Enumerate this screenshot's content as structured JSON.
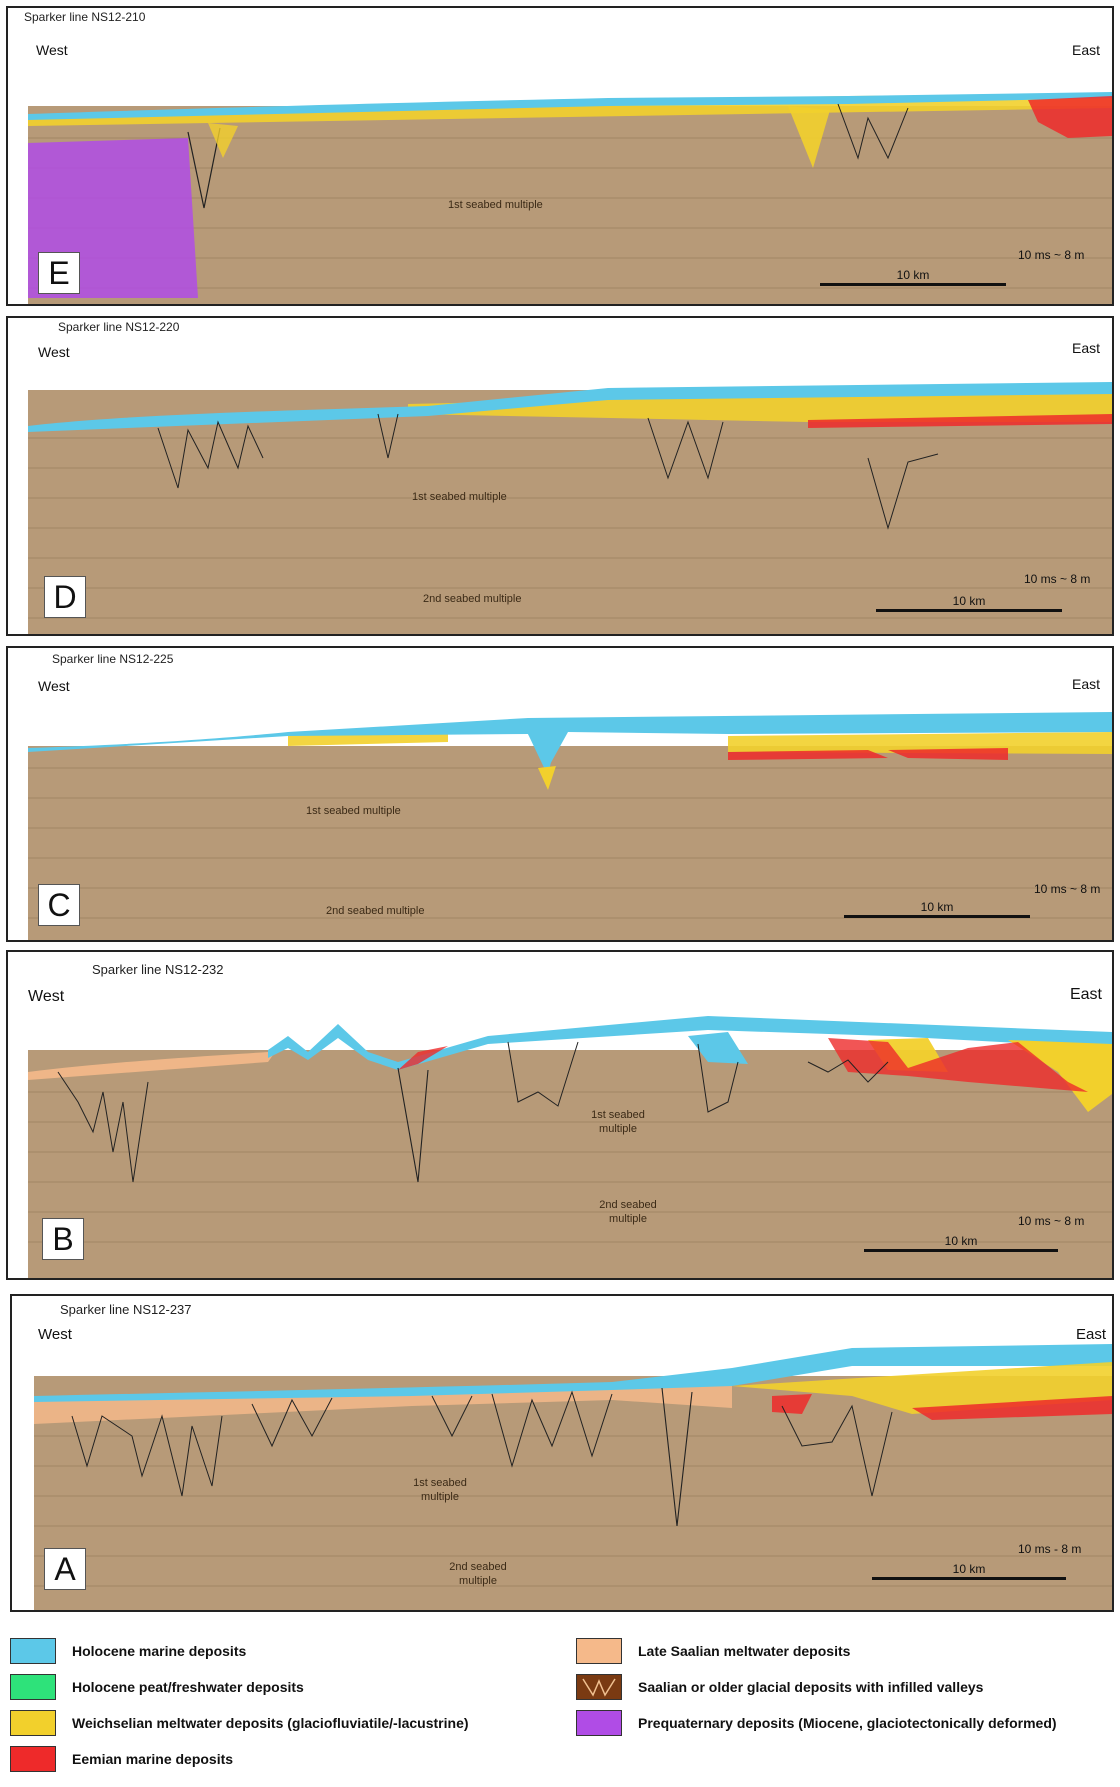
{
  "colors": {
    "holocene_marine": "#5cc8e8",
    "holocene_peat": "#2ee27a",
    "weichselian": "#f2d02c",
    "eemian": "#ee2a2a",
    "late_saalian": "#f5b98a",
    "saalian_glacial": "#7a3a12",
    "prequaternary": "#b04ce6",
    "background": "#b79a78"
  },
  "direction": {
    "west": "West",
    "east": "East"
  },
  "panels": [
    {
      "letter": "E",
      "title": "Sparker line NS12-210",
      "multiple1": "1st seabed multiple",
      "multiple2": "",
      "vscale": "10 ms ~ 8 m",
      "hscale": "10 km"
    },
    {
      "letter": "D",
      "title": "Sparker line NS12-220",
      "multiple1": "1st seabed multiple",
      "multiple2": "2nd seabed multiple",
      "vscale": "10 ms ~ 8 m",
      "hscale": "10 km"
    },
    {
      "letter": "C",
      "title": "Sparker line NS12-225",
      "multiple1": "1st seabed multiple",
      "multiple2": "2nd seabed multiple",
      "vscale": "10 ms ~ 8 m",
      "hscale": "10 km"
    },
    {
      "letter": "B",
      "title": "Sparker line NS12-232",
      "multiple1": "1st seabed multiple",
      "multiple2": "2nd seabed multiple",
      "vscale": "10 ms ~ 8 m",
      "hscale": "10 km"
    },
    {
      "letter": "A",
      "title": "Sparker line NS12-237",
      "multiple1": "1st seabed multiple",
      "multiple2": "2nd seabed multiple",
      "vscale": "10 ms - 8 m",
      "hscale": "10 km"
    }
  ],
  "legend": [
    {
      "label": "Holocene marine deposits",
      "color": "#5cc8e8",
      "icon": ""
    },
    {
      "label": "Holocene peat/freshwater deposits",
      "color": "#2ee27a",
      "icon": ""
    },
    {
      "label": "Weichselian meltwater deposits (glaciofluviatile/-lacustrine)",
      "color": "#f2d02c",
      "icon": ""
    },
    {
      "label": "Eemian marine deposits",
      "color": "#ee2a2a",
      "icon": ""
    },
    {
      "label": "Late Saalian meltwater deposits",
      "color": "#f5b98a",
      "icon": ""
    },
    {
      "label": "Saalian or older glacial deposits with infilled valleys",
      "color": "#7a3a12",
      "icon": "valley-outline-icon"
    },
    {
      "label": "Prequaternary deposits (Miocene, glaciotectonically deformed)",
      "color": "#b04ce6",
      "icon": ""
    }
  ]
}
